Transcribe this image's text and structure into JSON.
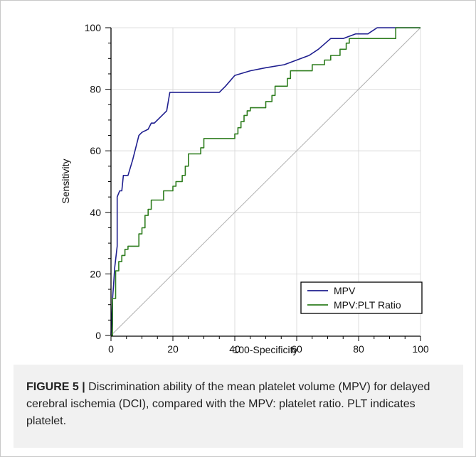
{
  "chart_data": {
    "type": "line",
    "xlabel": "100-Specificity",
    "ylabel": "Sensitivity",
    "xlim": [
      0,
      100
    ],
    "ylim": [
      0,
      100
    ],
    "x_ticks": [
      "0",
      "20",
      "40",
      "60",
      "80",
      "100"
    ],
    "y_ticks": [
      "0",
      "20",
      "40",
      "60",
      "80",
      "100"
    ],
    "grid": true,
    "legend_position": "bottom-right",
    "colors": {
      "MPV": "#1f1f8f",
      "MPV:PLT Ratio": "#2e7d1e",
      "reference": "#b0b0b0"
    },
    "reference_line": [
      [
        0,
        0
      ],
      [
        100,
        100
      ]
    ],
    "series": [
      {
        "name": "MPV",
        "points": [
          [
            0,
            0
          ],
          [
            0.5,
            12
          ],
          [
            0.8,
            16
          ],
          [
            1.2,
            22
          ],
          [
            2,
            29
          ],
          [
            2,
            45
          ],
          [
            2.8,
            47
          ],
          [
            3.5,
            47
          ],
          [
            4,
            52
          ],
          [
            5.5,
            52
          ],
          [
            7,
            57
          ],
          [
            8,
            61
          ],
          [
            9,
            65
          ],
          [
            10,
            66
          ],
          [
            12,
            67
          ],
          [
            13,
            69
          ],
          [
            14,
            69
          ],
          [
            16,
            71
          ],
          [
            18,
            73
          ],
          [
            19,
            79
          ],
          [
            20,
            79
          ],
          [
            35,
            79
          ],
          [
            37,
            81
          ],
          [
            40,
            84.5
          ],
          [
            45,
            86
          ],
          [
            50,
            87
          ],
          [
            56,
            88
          ],
          [
            60,
            89.5
          ],
          [
            64,
            91
          ],
          [
            67,
            93
          ],
          [
            71,
            96.5
          ],
          [
            75,
            96.5
          ],
          [
            79,
            98
          ],
          [
            83,
            98
          ],
          [
            86,
            100
          ],
          [
            100,
            100
          ]
        ]
      },
      {
        "name": "MPV:PLT Ratio",
        "points": [
          [
            0,
            0
          ],
          [
            0.5,
            0
          ],
          [
            0.5,
            12
          ],
          [
            1.5,
            12
          ],
          [
            1.5,
            21
          ],
          [
            2.5,
            21
          ],
          [
            2.5,
            24
          ],
          [
            3.5,
            24
          ],
          [
            3.5,
            26
          ],
          [
            4.5,
            26
          ],
          [
            4.5,
            28
          ],
          [
            5.5,
            28
          ],
          [
            5.5,
            29
          ],
          [
            9,
            29
          ],
          [
            9,
            33
          ],
          [
            10,
            33
          ],
          [
            10,
            35
          ],
          [
            11,
            35
          ],
          [
            11,
            39
          ],
          [
            12,
            39
          ],
          [
            12,
            41
          ],
          [
            13,
            41
          ],
          [
            13,
            44
          ],
          [
            17,
            44
          ],
          [
            17,
            47
          ],
          [
            20,
            47
          ],
          [
            20,
            48.5
          ],
          [
            21,
            48.5
          ],
          [
            21,
            50
          ],
          [
            23,
            50
          ],
          [
            23,
            52
          ],
          [
            24,
            52
          ],
          [
            24,
            55
          ],
          [
            25,
            55
          ],
          [
            25,
            59
          ],
          [
            29,
            59
          ],
          [
            29,
            61
          ],
          [
            30,
            61
          ],
          [
            30,
            64
          ],
          [
            40,
            64
          ],
          [
            40,
            65.5
          ],
          [
            41,
            65.5
          ],
          [
            41,
            67.5
          ],
          [
            42,
            67.5
          ],
          [
            42,
            69.5
          ],
          [
            43,
            69.5
          ],
          [
            43,
            71.5
          ],
          [
            44,
            71.5
          ],
          [
            44,
            73
          ],
          [
            45,
            73
          ],
          [
            45,
            74
          ],
          [
            50,
            74
          ],
          [
            50,
            76
          ],
          [
            52,
            76
          ],
          [
            52,
            78
          ],
          [
            53,
            78
          ],
          [
            53,
            81
          ],
          [
            57,
            81
          ],
          [
            57,
            83.5
          ],
          [
            58,
            83.5
          ],
          [
            58,
            86
          ],
          [
            65,
            86
          ],
          [
            65,
            88
          ],
          [
            69,
            88
          ],
          [
            69,
            89.5
          ],
          [
            71,
            89.5
          ],
          [
            71,
            91
          ],
          [
            74,
            91
          ],
          [
            74,
            93
          ],
          [
            76,
            93
          ],
          [
            76,
            95
          ],
          [
            77,
            95
          ],
          [
            77,
            96.5
          ],
          [
            92,
            96.5
          ],
          [
            92,
            100
          ],
          [
            100,
            100
          ]
        ]
      }
    ]
  },
  "caption": {
    "label": "FIGURE 5 |",
    "text": " Discrimination ability of the mean platelet volume (MPV) for delayed cerebral ischemia (DCI), compared with the MPV: platelet ratio. PLT indicates platelet."
  }
}
